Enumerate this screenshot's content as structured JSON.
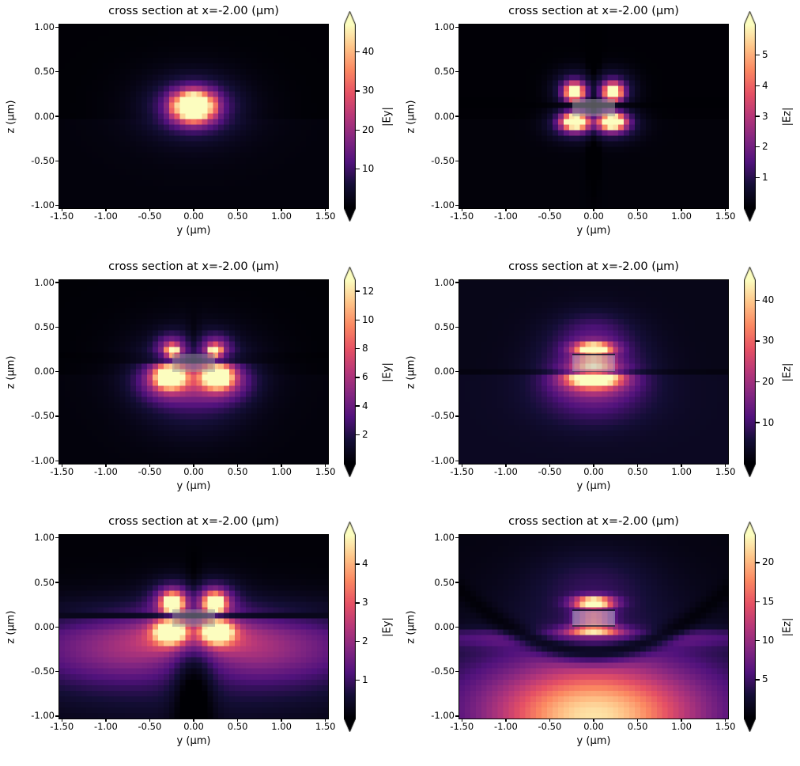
{
  "figure": {
    "background": "#ffffff",
    "text_color": "#000000",
    "description": "2x3 grid of field magnitude cross sections"
  },
  "colors": {
    "magma_stops": [
      [
        0.0,
        "#000004"
      ],
      [
        0.125,
        "#140e36"
      ],
      [
        0.25,
        "#51127c"
      ],
      [
        0.375,
        "#832681"
      ],
      [
        0.5,
        "#b73779"
      ],
      [
        0.625,
        "#e65164"
      ],
      [
        0.75,
        "#fb8761"
      ],
      [
        0.875,
        "#fec287"
      ],
      [
        1.0,
        "#fcfdbf"
      ]
    ],
    "extend_over": "#fcfdbf",
    "extend_under": "#000004",
    "waveguide_gray": "#9b9b9e"
  },
  "chart_data": [
    {
      "type": "heatmap",
      "colormap": "magma",
      "title": "cross section at x=-2.00 (μm)",
      "xlabel": "y (μm)",
      "ylabel": "z (μm)",
      "xlim": [
        -1.53,
        1.53
      ],
      "ylim": [
        -1.03,
        1.03
      ],
      "xticks": [
        -1.5,
        -1.0,
        -0.5,
        0.0,
        0.5,
        1.0,
        1.5
      ],
      "xtick_labels": [
        "-1.50",
        "-1.00",
        "-0.50",
        "0.00",
        "0.50",
        "1.00",
        "1.50"
      ],
      "yticks": [
        1.0,
        0.5,
        0.0,
        -0.5,
        -1.0
      ],
      "ytick_labels": [
        "1.00",
        "0.50",
        "0.00",
        "-0.50",
        "-1.00"
      ],
      "colorbar": {
        "label": "|Ey|",
        "ticks": [
          10,
          20,
          30,
          40
        ],
        "vmin": 0,
        "vmax": 47,
        "extend": "both"
      },
      "grid": {
        "nx": 49,
        "nz": 33
      },
      "field": {
        "ambient": 0.004,
        "below": 0.016,
        "gaussians": [
          {
            "y": 0,
            "z": 0.11,
            "sy": 0.13,
            "sz": 0.1,
            "a": 1.55
          },
          {
            "y": 0,
            "z": 0.11,
            "sy": 0.28,
            "sz": 0.185,
            "a": 0.38
          },
          {
            "y": 0,
            "z": 0.1,
            "sy": 0.5,
            "sz": 0.32,
            "a": 0.1
          },
          {
            "y": 0.265,
            "z": 0.12,
            "sy": 0.02,
            "sz": 0.1,
            "a": 0.28,
            "m": 1
          },
          {
            "y": 0.225,
            "z": 0.12,
            "sy": 0.016,
            "sz": 0.09,
            "a": -0.32,
            "m": 1
          }
        ],
        "dark_curves": [],
        "waveguide": null
      }
    },
    {
      "type": "heatmap",
      "colormap": "magma",
      "title": "cross section at x=-2.00 (μm)",
      "xlabel": "y (μm)",
      "ylabel": "z (μm)",
      "xlim": [
        -1.53,
        1.53
      ],
      "ylim": [
        -1.03,
        1.03
      ],
      "xticks": [
        -1.5,
        -1.0,
        -0.5,
        0.0,
        0.5,
        1.0,
        1.5
      ],
      "xtick_labels": [
        "-1.50",
        "-1.00",
        "-0.50",
        "0.00",
        "0.50",
        "1.00",
        "1.50"
      ],
      "yticks": [
        1.0,
        0.5,
        0.0,
        -0.5,
        -1.0
      ],
      "ytick_labels": [
        "1.00",
        "0.50",
        "0.00",
        "-0.50",
        "-1.00"
      ],
      "colorbar": {
        "label": "|Ez|",
        "ticks": [
          1,
          2,
          3,
          4,
          5
        ],
        "vmin": 0,
        "vmax": 6,
        "extend": "both"
      },
      "grid": {
        "nx": 49,
        "nz": 33
      },
      "field": {
        "ambient": 0.004,
        "below": 0.012,
        "gaussians": [
          {
            "y": 0.22,
            "z": 0.27,
            "sy": 0.075,
            "sz": 0.068,
            "a": 1.08,
            "m": 1
          },
          {
            "y": 0.23,
            "z": 0.3,
            "sy": 0.16,
            "sz": 0.14,
            "a": 0.26,
            "m": 1
          },
          {
            "y": 0.21,
            "z": -0.06,
            "sy": 0.1,
            "sz": 0.062,
            "a": 1.22,
            "m": 1
          },
          {
            "y": 0.24,
            "z": -0.09,
            "sy": 0.19,
            "sz": 0.12,
            "a": 0.27,
            "m": 1
          },
          {
            "y": 0,
            "z": 0.1,
            "sy": 0.05,
            "sz": 0.5,
            "a": -0.1
          }
        ],
        "dark_curves": [
          {
            "c": 0.125,
            "k": 0.02,
            "w": 0.03,
            "a": 0.75
          }
        ],
        "waveguide": {
          "y": [
            -0.24,
            0.24
          ],
          "z": [
            0.0,
            0.2
          ],
          "fill": "rgba(155,155,158,0.55)",
          "bt": null,
          "bb": null
        }
      }
    },
    {
      "type": "heatmap",
      "colormap": "magma",
      "title": "cross section at x=-2.00 (μm)",
      "xlabel": "y (μm)",
      "ylabel": "z (μm)",
      "xlim": [
        -1.53,
        1.53
      ],
      "ylim": [
        -1.03,
        1.03
      ],
      "xticks": [
        -1.5,
        -1.0,
        -0.5,
        0.0,
        0.5,
        1.0,
        1.5
      ],
      "xtick_labels": [
        "-1.50",
        "-1.00",
        "-0.50",
        "0.00",
        "0.50",
        "1.00",
        "1.50"
      ],
      "yticks": [
        1.0,
        0.5,
        0.0,
        -0.5,
        -1.0
      ],
      "ytick_labels": [
        "1.00",
        "0.50",
        "0.00",
        "-0.50",
        "-1.00"
      ],
      "colorbar": {
        "label": "|Ey|",
        "ticks": [
          2,
          4,
          6,
          8,
          10,
          12
        ],
        "vmin": 0,
        "vmax": 12.8,
        "extend": "both"
      },
      "grid": {
        "nx": 49,
        "nz": 33
      },
      "field": {
        "ambient": 0.006,
        "below": 0.014,
        "gaussians": [
          {
            "y": 0.24,
            "z": 0.23,
            "sy": 0.05,
            "sz": 0.045,
            "a": 1.05,
            "m": 1
          },
          {
            "y": 0.26,
            "z": 0.28,
            "sy": 0.125,
            "sz": 0.105,
            "a": 0.3,
            "m": 1
          },
          {
            "y": 0.27,
            "z": -0.05,
            "sy": 0.115,
            "sz": 0.085,
            "a": 1.22,
            "m": 1
          },
          {
            "y": 0.3,
            "z": -0.11,
            "sy": 0.24,
            "sz": 0.16,
            "a": 0.33,
            "m": 1
          },
          {
            "y": 0,
            "z": 0.05,
            "sy": 0.5,
            "sz": 0.33,
            "a": 0.17
          },
          {
            "y": 0,
            "z": -0.38,
            "sy": 0.42,
            "sz": 0.28,
            "a": 0.09
          },
          {
            "y": 0,
            "z": 0.32,
            "sy": 0.05,
            "sz": 0.18,
            "a": -0.08
          }
        ],
        "dark_curves": [
          {
            "c": 0.145,
            "k": 0.012,
            "w": 0.03,
            "a": 0.7
          }
        ],
        "waveguide": {
          "y": [
            -0.24,
            0.24
          ],
          "z": [
            0.0,
            0.2
          ],
          "fill": "rgba(150,150,152,0.5)",
          "bt": null,
          "bb": null
        }
      }
    },
    {
      "type": "heatmap",
      "colormap": "magma",
      "title": "cross section at x=-2.00 (μm)",
      "xlabel": "y (μm)",
      "ylabel": "z (μm)",
      "xlim": [
        -1.53,
        1.53
      ],
      "ylim": [
        -1.03,
        1.03
      ],
      "xticks": [
        -1.5,
        -1.0,
        -0.5,
        0.0,
        0.5,
        1.0,
        1.5
      ],
      "xtick_labels": [
        "-1.50",
        "-1.00",
        "-0.50",
        "0.00",
        "0.50",
        "1.00",
        "1.50"
      ],
      "yticks": [
        1.0,
        0.5,
        0.0,
        -0.5,
        -1.0
      ],
      "ytick_labels": [
        "1.00",
        "0.50",
        "0.00",
        "-0.50",
        "-1.00"
      ],
      "colorbar": {
        "label": "|Ez|",
        "ticks": [
          10,
          20,
          30,
          40
        ],
        "vmin": 0,
        "vmax": 45,
        "extend": "both"
      },
      "grid": {
        "nx": 49,
        "nz": 33
      },
      "field": {
        "ambient": 0.05,
        "below": 0.025,
        "gaussians": [
          {
            "y": 0,
            "z": 0.26,
            "sy": 0.155,
            "sz": 0.05,
            "a": 0.9
          },
          {
            "y": 0,
            "z": 0.255,
            "sy": 0.085,
            "sz": 0.035,
            "a": 0.35
          },
          {
            "y": 0,
            "z": 0.09,
            "sy": 0.15,
            "sz": 0.06,
            "a": 0.55
          },
          {
            "y": 0,
            "z": -0.07,
            "sy": 0.18,
            "sz": 0.05,
            "a": 0.95
          },
          {
            "y": 0,
            "z": -0.1,
            "sy": 0.26,
            "sz": 0.1,
            "a": 0.4
          },
          {
            "y": 0,
            "z": 0.08,
            "sy": 0.4,
            "sz": 0.3,
            "a": 0.25
          },
          {
            "y": 0,
            "z": -0.3,
            "sy": 0.45,
            "sz": 0.22,
            "a": 0.13
          },
          {
            "y": 0,
            "z": 0.45,
            "sy": 0.28,
            "sz": 0.16,
            "a": 0.1
          }
        ],
        "dark_curves": [
          {
            "c": 0.0,
            "k": 0.0,
            "w": 0.02,
            "a": 0.4
          }
        ],
        "waveguide": {
          "y": [
            -0.24,
            0.24
          ],
          "z": [
            0.0,
            0.2
          ],
          "fill": "rgba(180,188,208,0.45)",
          "bt": "2px solid rgba(15,15,40,0.85)",
          "bb": "1px solid rgba(15,15,40,0.45)"
        }
      }
    },
    {
      "type": "heatmap",
      "colormap": "magma",
      "title": "cross section at x=-2.00 (μm)",
      "xlabel": "y (μm)",
      "ylabel": "z (μm)",
      "xlim": [
        -1.53,
        1.53
      ],
      "ylim": [
        -1.03,
        1.03
      ],
      "xticks": [
        -1.5,
        -1.0,
        -0.5,
        0.0,
        0.5,
        1.0,
        1.5
      ],
      "xtick_labels": [
        "-1.50",
        "-1.00",
        "-0.50",
        "0.00",
        "0.50",
        "1.00",
        "1.50"
      ],
      "yticks": [
        1.0,
        0.5,
        0.0,
        -0.5,
        -1.0
      ],
      "ytick_labels": [
        "1.00",
        "0.50",
        "0.00",
        "-0.50",
        "-1.00"
      ],
      "colorbar": {
        "label": "|Ey|",
        "ticks": [
          1,
          2,
          3,
          4
        ],
        "vmin": 0,
        "vmax": 4.75,
        "extend": "both"
      },
      "grid": {
        "nx": 49,
        "nz": 33
      },
      "field": {
        "ambient": 0.01,
        "below": 0.02,
        "gaussians": [
          {
            "y": 0.24,
            "z": 0.26,
            "sy": 0.08,
            "sz": 0.075,
            "a": 1.15,
            "m": 1
          },
          {
            "y": 0.25,
            "z": 0.31,
            "sy": 0.16,
            "sz": 0.13,
            "a": 0.28,
            "m": 1
          },
          {
            "y": 0.26,
            "z": -0.05,
            "sy": 0.11,
            "sz": 0.08,
            "a": 1.25,
            "m": 1
          },
          {
            "y": 0.28,
            "z": -0.11,
            "sy": 0.2,
            "sz": 0.13,
            "a": 0.28,
            "m": 1
          },
          {
            "y": 0,
            "z": 0.14,
            "sy": 0.4,
            "sz": 0.26,
            "a": 0.18
          },
          {
            "y": 1.15,
            "z": -0.22,
            "sy": 0.65,
            "sz": 0.3,
            "a": 0.27,
            "m": 1
          },
          {
            "y": 0.6,
            "z": -0.18,
            "sy": 0.33,
            "sz": 0.24,
            "a": 0.16,
            "m": 1
          },
          {
            "y": 0,
            "z": -0.55,
            "sy": 1.2,
            "sz": 0.42,
            "a": 0.1
          },
          {
            "y": 0,
            "z": -0.65,
            "sy": 0.16,
            "sz": 0.5,
            "a": -0.2
          },
          {
            "y": 0,
            "z": 0.38,
            "sy": 0.06,
            "sz": 0.22,
            "a": -0.08
          }
        ],
        "dark_curves": [
          {
            "c": 0.12,
            "k": 0.01,
            "w": 0.028,
            "a": 0.72
          }
        ],
        "waveguide": {
          "y": [
            -0.24,
            0.24
          ],
          "z": [
            0.0,
            0.2
          ],
          "fill": "rgba(150,150,152,0.5)",
          "bt": null,
          "bb": null
        }
      }
    },
    {
      "type": "heatmap",
      "colormap": "magma",
      "title": "cross section at x=-2.00 (μm)",
      "xlabel": "y (μm)",
      "ylabel": "z (μm)",
      "xlim": [
        -1.53,
        1.53
      ],
      "ylim": [
        -1.03,
        1.03
      ],
      "xticks": [
        -1.5,
        -1.0,
        -0.5,
        0.0,
        0.5,
        1.0,
        1.5
      ],
      "xtick_labels": [
        "-1.50",
        "-1.00",
        "-0.50",
        "0.00",
        "0.50",
        "1.00",
        "1.50"
      ],
      "yticks": [
        1.0,
        0.5,
        0.0,
        -0.5,
        -1.0
      ],
      "ytick_labels": [
        "1.00",
        "0.50",
        "0.00",
        "-0.50",
        "-1.00"
      ],
      "colorbar": {
        "label": "|Ez|",
        "ticks": [
          5,
          10,
          15,
          20
        ],
        "vmin": 0,
        "vmax": 23.5,
        "extend": "both"
      },
      "grid": {
        "nx": 49,
        "nz": 33
      },
      "field": {
        "ambient": 0.03,
        "below": 0.035,
        "gaussians": [
          {
            "y": 0,
            "z": 0.27,
            "sy": 0.16,
            "sz": 0.05,
            "a": 0.9
          },
          {
            "y": 0,
            "z": 0.265,
            "sy": 0.08,
            "sz": 0.035,
            "a": 0.3
          },
          {
            "y": 0,
            "z": 0.09,
            "sy": 0.14,
            "sz": 0.055,
            "a": 0.5
          },
          {
            "y": 0,
            "z": -0.04,
            "sy": 0.2,
            "sz": 0.032,
            "a": 0.85
          },
          {
            "y": 0,
            "z": -1.05,
            "sy": 0.8,
            "sz": 0.4,
            "a": 0.68
          },
          {
            "y": 0,
            "z": -0.8,
            "sy": 1.35,
            "sz": 0.45,
            "a": 0.22
          },
          {
            "y": 0,
            "z": -0.13,
            "sy": 2.2,
            "sz": 0.07,
            "a": 0.15
          },
          {
            "y": 0,
            "z": 0.45,
            "sy": 0.45,
            "sz": 0.28,
            "a": 0.1
          },
          {
            "y": 0,
            "z": 0.1,
            "sy": 0.8,
            "sz": 0.5,
            "a": 0.07
          }
        ],
        "dark_curves": [
          {
            "c": -0.28,
            "k": 0.3,
            "w": 0.09,
            "a": 0.8
          }
        ],
        "waveguide": {
          "y": [
            -0.24,
            0.24
          ],
          "z": [
            0.0,
            0.2
          ],
          "fill": "rgba(180,188,208,0.5)",
          "bt": "2px solid rgba(15,15,40,0.85)",
          "bb": "2px solid rgba(15,15,40,0.7)"
        }
      }
    }
  ]
}
